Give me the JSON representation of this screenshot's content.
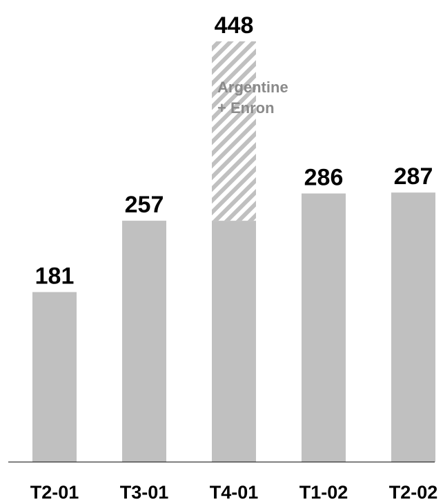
{
  "chart_data": {
    "type": "bar",
    "categories": [
      "T2-01",
      "T3-01",
      "T4-01",
      "T1-02",
      "T2-02"
    ],
    "series": [
      {
        "values": [
          181,
          257,
          257,
          286,
          287
        ]
      },
      {
        "values": [
          0,
          0,
          191,
          0,
          0
        ]
      }
    ],
    "totals": [
      181,
      257,
      448,
      286,
      287
    ],
    "annotation": {
      "category": "T4-01",
      "lines": [
        "Argentine",
        "+ Enron"
      ]
    },
    "ylim": [
      0,
      448
    ],
    "grid": false,
    "legend": "none",
    "colors": {
      "bar": "#c0c0c0",
      "hatch": "#c0c0c0",
      "axis": "#000000"
    }
  }
}
